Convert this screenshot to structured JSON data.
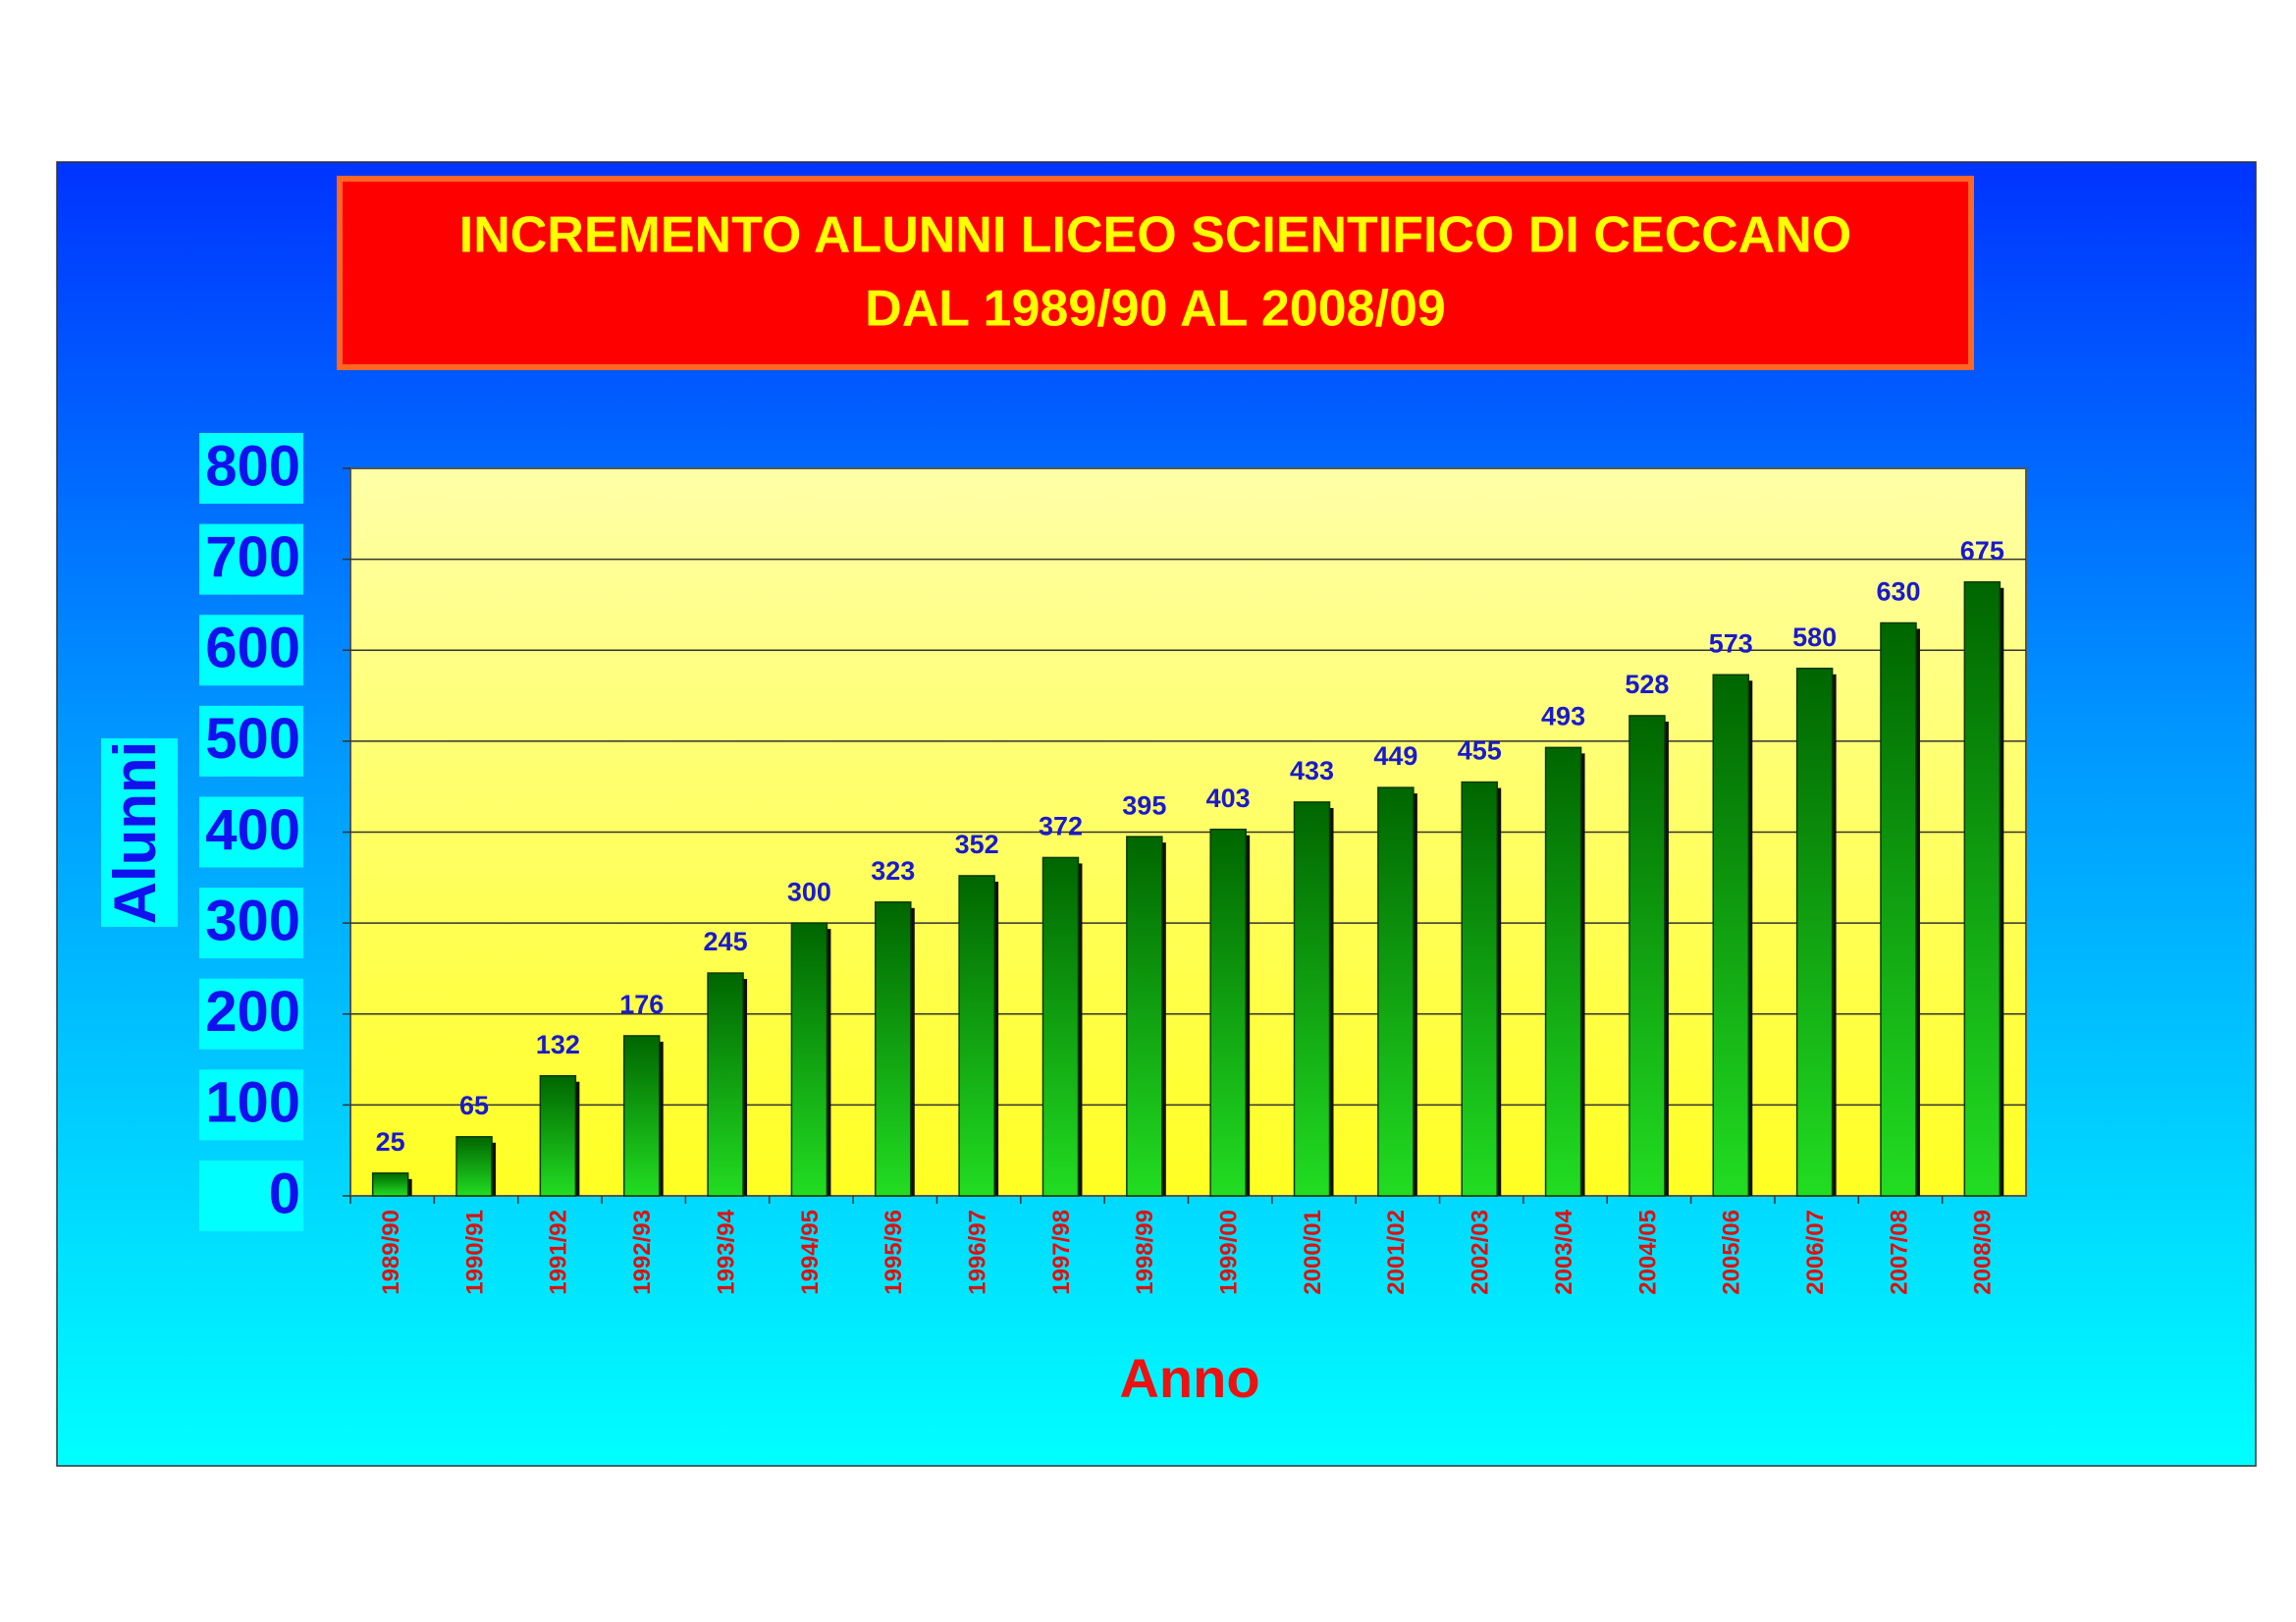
{
  "chart_data": {
    "type": "bar",
    "title": "INCREMENTO ALUNNI LICEO SCIENTIFICO DI CECCANO",
    "subtitle": "DAL 1989/90 AL 2008/09",
    "x_label": "Anno",
    "y_label": "Alunni",
    "categories": [
      "1989/90",
      "1990/91",
      "1991/92",
      "1992/93",
      "1993/94",
      "1994/95",
      "1995/96",
      "1996/97",
      "1997/98",
      "1998/99",
      "1999/00",
      "2000/01",
      "2001/02",
      "2002/03",
      "2003/04",
      "2004/05",
      "2005/06",
      "2006/07",
      "2007/08",
      "2008/09"
    ],
    "values": [
      25,
      65,
      132,
      176,
      245,
      300,
      323,
      352,
      372,
      395,
      403,
      433,
      449,
      455,
      493,
      528,
      573,
      580,
      630,
      675
    ],
    "color": "#22dd22",
    "ylim": [
      0,
      800
    ],
    "yticks": [
      0,
      100,
      200,
      300,
      400,
      500,
      600,
      700,
      800
    ],
    "grid": true
  }
}
